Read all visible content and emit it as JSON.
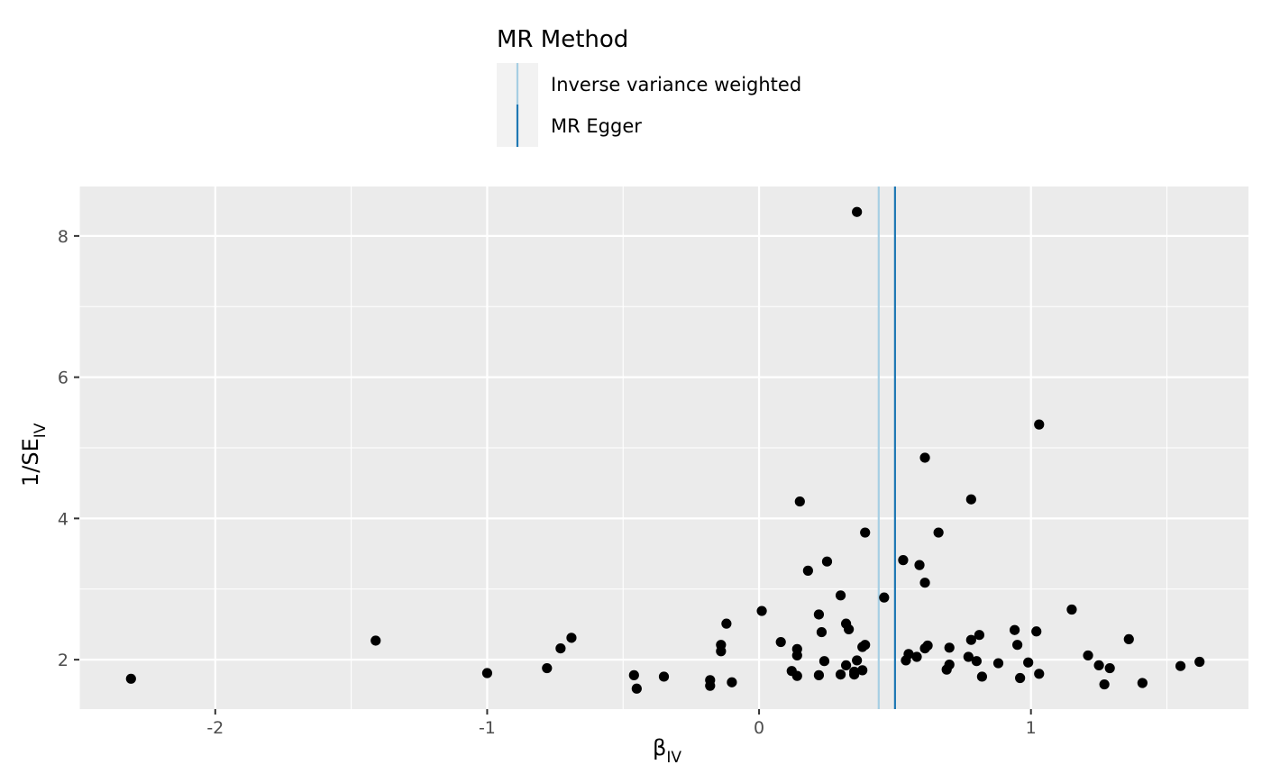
{
  "chart_data": {
    "type": "scatter",
    "xlabel": "β",
    "xlabel_subscript": "IV",
    "ylabel": "1/SE",
    "ylabel_subscript": "IV",
    "xlim": [
      -2.5,
      1.8
    ],
    "ylim": [
      1.3,
      8.7
    ],
    "x_ticks": [
      -2,
      -1,
      0,
      1
    ],
    "x_tick_labels": [
      "-2",
      "-1",
      "0",
      "1"
    ],
    "y_ticks": [
      2,
      4,
      6,
      8
    ],
    "y_tick_labels": [
      "2",
      "4",
      "6",
      "8"
    ],
    "grid": true,
    "legend": {
      "title": "MR Method",
      "placement": "top",
      "entries": [
        {
          "label": "Inverse variance weighted",
          "color": "#a6cee3"
        },
        {
          "label": "MR Egger",
          "color": "#1f78b4"
        }
      ]
    },
    "vlines": [
      {
        "method": "Inverse variance weighted",
        "x": 0.44,
        "color": "#a6cee3"
      },
      {
        "method": "MR Egger",
        "x": 0.5,
        "color": "#1f78b4"
      }
    ],
    "point_color": "#000000",
    "points": [
      [
        -2.31,
        1.73
      ],
      [
        -1.41,
        2.27
      ],
      [
        -1.0,
        1.81
      ],
      [
        -0.78,
        1.88
      ],
      [
        -0.73,
        2.16
      ],
      [
        -0.69,
        2.31
      ],
      [
        -0.46,
        1.78
      ],
      [
        -0.45,
        1.59
      ],
      [
        -0.35,
        1.76
      ],
      [
        -0.18,
        1.71
      ],
      [
        -0.18,
        1.63
      ],
      [
        -0.14,
        2.12
      ],
      [
        -0.14,
        2.21
      ],
      [
        -0.12,
        2.51
      ],
      [
        -0.1,
        1.68
      ],
      [
        0.01,
        2.69
      ],
      [
        0.08,
        2.25
      ],
      [
        0.12,
        1.84
      ],
      [
        0.14,
        1.77
      ],
      [
        0.14,
        2.06
      ],
      [
        0.14,
        2.15
      ],
      [
        0.15,
        4.24
      ],
      [
        0.18,
        3.26
      ],
      [
        0.22,
        1.78
      ],
      [
        0.22,
        2.64
      ],
      [
        0.23,
        2.39
      ],
      [
        0.24,
        1.98
      ],
      [
        0.25,
        3.39
      ],
      [
        0.3,
        1.79
      ],
      [
        0.3,
        2.91
      ],
      [
        0.32,
        1.92
      ],
      [
        0.32,
        2.51
      ],
      [
        0.33,
        2.43
      ],
      [
        0.35,
        1.83
      ],
      [
        0.35,
        1.79
      ],
      [
        0.36,
        1.99
      ],
      [
        0.38,
        1.85
      ],
      [
        0.38,
        2.18
      ],
      [
        0.39,
        2.21
      ],
      [
        0.39,
        3.8
      ],
      [
        0.36,
        8.34
      ],
      [
        0.46,
        2.88
      ],
      [
        0.53,
        3.41
      ],
      [
        0.54,
        1.99
      ],
      [
        0.55,
        2.08
      ],
      [
        0.58,
        2.04
      ],
      [
        0.59,
        3.34
      ],
      [
        0.61,
        2.16
      ],
      [
        0.61,
        3.09
      ],
      [
        0.61,
        4.86
      ],
      [
        0.62,
        2.2
      ],
      [
        0.66,
        3.8
      ],
      [
        0.69,
        1.86
      ],
      [
        0.7,
        1.93
      ],
      [
        0.7,
        2.17
      ],
      [
        0.77,
        2.04
      ],
      [
        0.78,
        2.28
      ],
      [
        0.78,
        4.27
      ],
      [
        0.8,
        1.98
      ],
      [
        0.81,
        2.35
      ],
      [
        0.82,
        1.76
      ],
      [
        0.88,
        1.95
      ],
      [
        0.94,
        2.42
      ],
      [
        0.95,
        2.21
      ],
      [
        0.96,
        1.74
      ],
      [
        0.99,
        1.96
      ],
      [
        1.02,
        2.4
      ],
      [
        1.03,
        1.8
      ],
      [
        1.03,
        5.33
      ],
      [
        1.15,
        2.71
      ],
      [
        1.21,
        2.06
      ],
      [
        1.25,
        1.92
      ],
      [
        1.27,
        1.65
      ],
      [
        1.29,
        1.88
      ],
      [
        1.36,
        2.29
      ],
      [
        1.41,
        1.67
      ],
      [
        1.55,
        1.91
      ],
      [
        1.62,
        1.97
      ]
    ]
  }
}
